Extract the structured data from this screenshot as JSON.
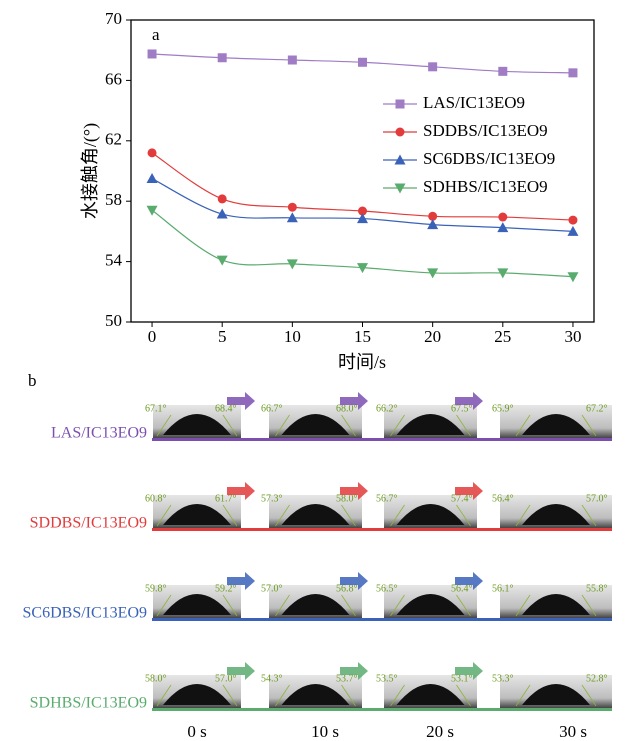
{
  "chart_data": {
    "type": "line",
    "panel_label": "a",
    "x_label": "时间/s",
    "y_label": "水接触角/(°)",
    "x": [
      0,
      5,
      10,
      15,
      20,
      25,
      30
    ],
    "xlim": [
      -1.5,
      31.5
    ],
    "xticks": [
      0,
      5,
      10,
      15,
      20,
      25,
      30
    ],
    "ylim": [
      50,
      70
    ],
    "yticks": [
      50,
      54,
      58,
      62,
      66,
      70
    ],
    "legend": "right",
    "smooth": true,
    "series": [
      {
        "name": "LAS/IC13EO9",
        "color": "#a07cc5",
        "marker": "square",
        "values": [
          67.75,
          67.5,
          67.35,
          67.2,
          66.9,
          66.6,
          66.5
        ]
      },
      {
        "name": "SDDBS/IC13EO9",
        "color": "#e23b3b",
        "marker": "circle",
        "values": [
          61.2,
          58.15,
          57.6,
          57.35,
          57.0,
          56.95,
          56.75
        ]
      },
      {
        "name": "SC6DBS/IC13EO9",
        "color": "#3a62b8",
        "marker": "triangle-up",
        "values": [
          59.5,
          57.15,
          56.9,
          56.85,
          56.45,
          56.25,
          56.0
        ]
      },
      {
        "name": "SDHBS/IC13EO9",
        "color": "#5aab6e",
        "marker": "triangle-down",
        "values": [
          57.4,
          54.1,
          53.85,
          53.6,
          53.25,
          53.25,
          53.0
        ]
      }
    ]
  },
  "panel_b": {
    "label": "b",
    "times": [
      "0 s",
      "10 s",
      "20 s",
      "30 s"
    ],
    "rows": [
      {
        "name": "LAS/IC13EO9",
        "color": "#7b4fb0",
        "angles": [
          "67.1°",
          "68.4°",
          "66.7°",
          "68.0°",
          "66.2°",
          "67.5°",
          "65.9°",
          "67.2°"
        ]
      },
      {
        "name": "SDDBS/IC13EO9",
        "color": "#e23b3b",
        "angles": [
          "60.8°",
          "61.7°",
          "57.3°",
          "58.0°",
          "56.7°",
          "57.4°",
          "56.4°",
          "57.0°"
        ]
      },
      {
        "name": "SC6DBS/IC13EO9",
        "color": "#3a62b8",
        "angles": [
          "59.8°",
          "59.2°",
          "57.0°",
          "56.8°",
          "56.5°",
          "56.4°",
          "56.1°",
          "55.8°"
        ]
      },
      {
        "name": "SDHBS/IC13EO9",
        "color": "#5aab6e",
        "angles": [
          "58.0°",
          "57.0°",
          "54.3°",
          "53.7°",
          "53.5°",
          "53.1°",
          "53.3°",
          "52.8°"
        ]
      }
    ]
  }
}
